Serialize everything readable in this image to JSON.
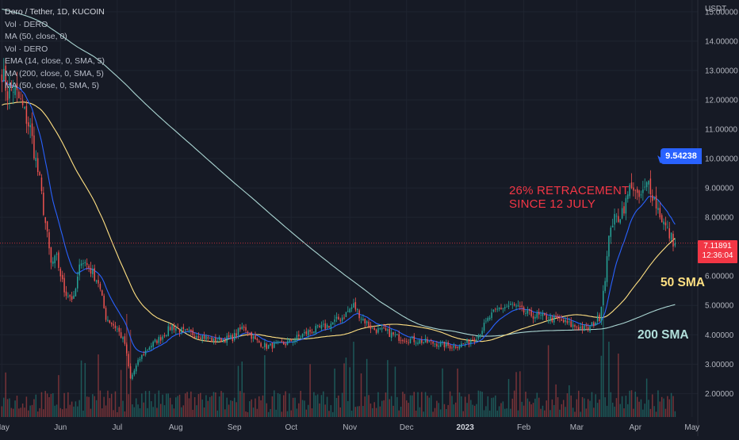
{
  "legend": {
    "title": "Dero / Tether, 1D, KUCOIN",
    "lines": [
      "Vol · DERO",
      "MA (50, close, 0)",
      "Vol · DERO",
      "EMA (14, close, 0, SMA, 5)",
      "MA (200, close, 0, SMA, 5)",
      "MA (50, close, 0, SMA, 5)"
    ]
  },
  "annotation": {
    "line1": "26% RETRACEMENT",
    "line2": "SINCE 12 JULY"
  },
  "labels": {
    "sma50": "50 SMA",
    "sma200": "200 SMA"
  },
  "price_badge": {
    "price": "7.11891",
    "countdown": "12:36:04"
  },
  "high_badge": "9.54238",
  "colors": {
    "background": "#161a25",
    "up": "#26a69a",
    "down": "#ef5350",
    "ema14": "#2962ff",
    "ma50": "#ffe082",
    "ma200": "#b2dfdb",
    "annotation": "#f23645",
    "price_line": "#f23645"
  },
  "chart_data": {
    "type": "candlestick",
    "pair": "Dero / Tether",
    "timeframe": "1D",
    "exchange": "KUCOIN",
    "y_axis": {
      "unit": "USDT",
      "ticks": [
        2,
        3,
        4,
        5,
        6,
        7,
        8,
        9,
        10,
        11,
        12,
        13,
        14,
        15
      ],
      "tick_labels": [
        "2.00000",
        "3.00000",
        "4.00000",
        "5.00000",
        "6.00000",
        "7.00000",
        "8.00000",
        "9.00000",
        "10.00000",
        "11.00000",
        "12.00000",
        "13.00000",
        "14.00000",
        "15.00000"
      ],
      "range": [
        1.2,
        15.4
      ]
    },
    "x_axis": {
      "labels": [
        "May",
        "Jun",
        "Jul",
        "Aug",
        "Sep",
        "Oct",
        "Nov",
        "Dec",
        "2023",
        "Feb",
        "Mar",
        "Apr",
        "May"
      ],
      "label_day_index": [
        0,
        31,
        61,
        92,
        123,
        153,
        184,
        214,
        245,
        276,
        304,
        335,
        365
      ]
    },
    "last_price": 7.11891,
    "recent_high": 9.54238,
    "anchors": [
      [
        0,
        13.0
      ],
      [
        3,
        12.2
      ],
      [
        6,
        12.4
      ],
      [
        10,
        11.9
      ],
      [
        15,
        11.0
      ],
      [
        20,
        9.2
      ],
      [
        26,
        6.4
      ],
      [
        29,
        6.6
      ],
      [
        33,
        5.5
      ],
      [
        38,
        5.2
      ],
      [
        42,
        6.6
      ],
      [
        46,
        6.3
      ],
      [
        51,
        5.8
      ],
      [
        55,
        4.6
      ],
      [
        61,
        4.2
      ],
      [
        65,
        3.7
      ],
      [
        68,
        2.5
      ],
      [
        73,
        3.2
      ],
      [
        78,
        3.6
      ],
      [
        84,
        3.9
      ],
      [
        90,
        4.3
      ],
      [
        96,
        4.1
      ],
      [
        104,
        4.0
      ],
      [
        112,
        3.8
      ],
      [
        122,
        3.9
      ],
      [
        128,
        4.3
      ],
      [
        134,
        3.8
      ],
      [
        140,
        3.6
      ],
      [
        150,
        3.7
      ],
      [
        162,
        4.1
      ],
      [
        172,
        4.3
      ],
      [
        180,
        4.6
      ],
      [
        186,
        5.0
      ],
      [
        190,
        4.6
      ],
      [
        196,
        4.2
      ],
      [
        203,
        4.1
      ],
      [
        210,
        3.9
      ],
      [
        220,
        3.8
      ],
      [
        230,
        3.7
      ],
      [
        238,
        3.6
      ],
      [
        245,
        3.7
      ],
      [
        252,
        4.0
      ],
      [
        258,
        4.6
      ],
      [
        263,
        4.9
      ],
      [
        270,
        5.0
      ],
      [
        278,
        4.7
      ],
      [
        286,
        4.6
      ],
      [
        295,
        4.5
      ],
      [
        302,
        4.3
      ],
      [
        310,
        4.2
      ],
      [
        316,
        4.6
      ],
      [
        319,
        6.0
      ],
      [
        322,
        7.8
      ],
      [
        326,
        8.0
      ],
      [
        330,
        8.5
      ],
      [
        333,
        9.2
      ],
      [
        336,
        8.6
      ],
      [
        339,
        8.8
      ],
      [
        342,
        9.2
      ],
      [
        345,
        8.6
      ],
      [
        350,
        7.8
      ],
      [
        353,
        7.4
      ],
      [
        356,
        7.1
      ]
    ],
    "ma_series": {
      "ema14_color": "#2962ff",
      "ma50_color": "#ffe082",
      "ma200_color": "#b2dfdb"
    },
    "volume_note": "volume histogram at bottom, spikes near Jul, Nov and mid-Mar"
  }
}
